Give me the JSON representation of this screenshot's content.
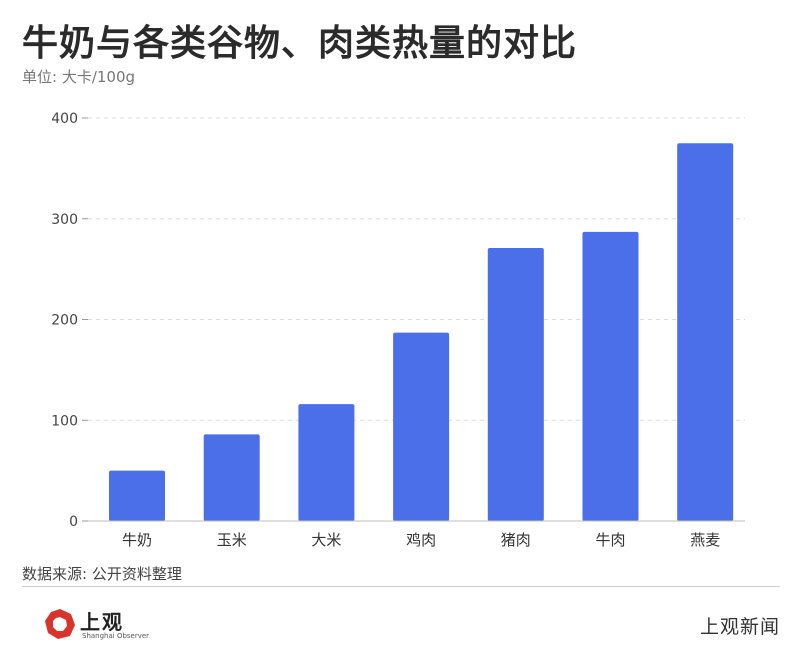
{
  "title": "牛奶与各类谷物、肉类热量的对比",
  "subtitle": "单位: 大卡/100g",
  "source": "数据来源: 公开资料整理",
  "logo": {
    "name": "上观",
    "english": "Shanghai Observer",
    "mark_color": "#d9342b"
  },
  "brand": "上观新闻",
  "colors": {
    "bar": "#4a6fe8",
    "grid": "#dcdcdc",
    "axis": "#bdbdbd"
  },
  "chart_data": {
    "type": "bar",
    "categories": [
      "牛奶",
      "玉米",
      "大米",
      "鸡肉",
      "猪肉",
      "牛肉",
      "燕麦"
    ],
    "values": [
      50,
      86,
      116,
      187,
      271,
      287,
      375
    ],
    "ylim": [
      0,
      400
    ],
    "yticks": [
      0,
      100,
      200,
      300,
      400
    ],
    "grid": true,
    "legend": "none"
  }
}
